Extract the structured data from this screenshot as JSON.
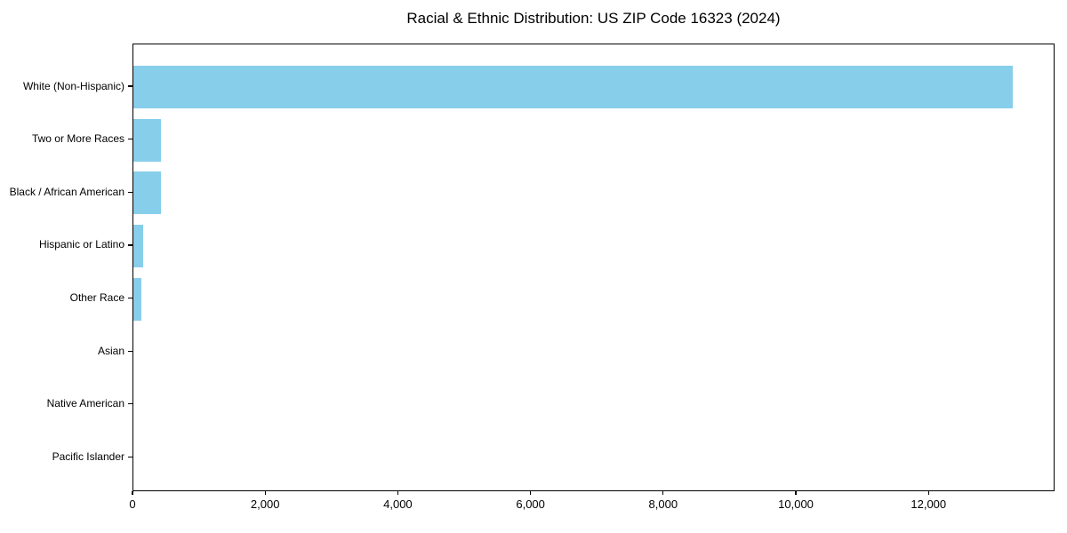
{
  "title": "Racial & Ethnic Distribution: US ZIP Code 16323 (2024)",
  "colors": {
    "bar": "#87CEEB",
    "axis": "#000000",
    "text": "#000000",
    "background": "#FFFFFF"
  },
  "chart_data": {
    "type": "bar",
    "orientation": "horizontal",
    "title": "Racial & Ethnic Distribution: US ZIP Code 16323 (2024)",
    "categories": [
      "White (Non-Hispanic)",
      "Two or More Races",
      "Black / African American",
      "Hispanic or Latino",
      "Other Race",
      "Asian",
      "Native American",
      "Pacific Islander"
    ],
    "values": [
      13250,
      420,
      415,
      150,
      120,
      0,
      0,
      0
    ],
    "xlabel": "",
    "ylabel": "",
    "xlim": [
      0,
      13900
    ],
    "xticks": [
      0,
      2000,
      4000,
      6000,
      8000,
      10000,
      12000
    ],
    "xtick_labels": [
      "0",
      "2,000",
      "4,000",
      "6,000",
      "8,000",
      "10,000",
      "12,000"
    ],
    "grid": false,
    "legend": null,
    "bar_color": "#87CEEB"
  }
}
